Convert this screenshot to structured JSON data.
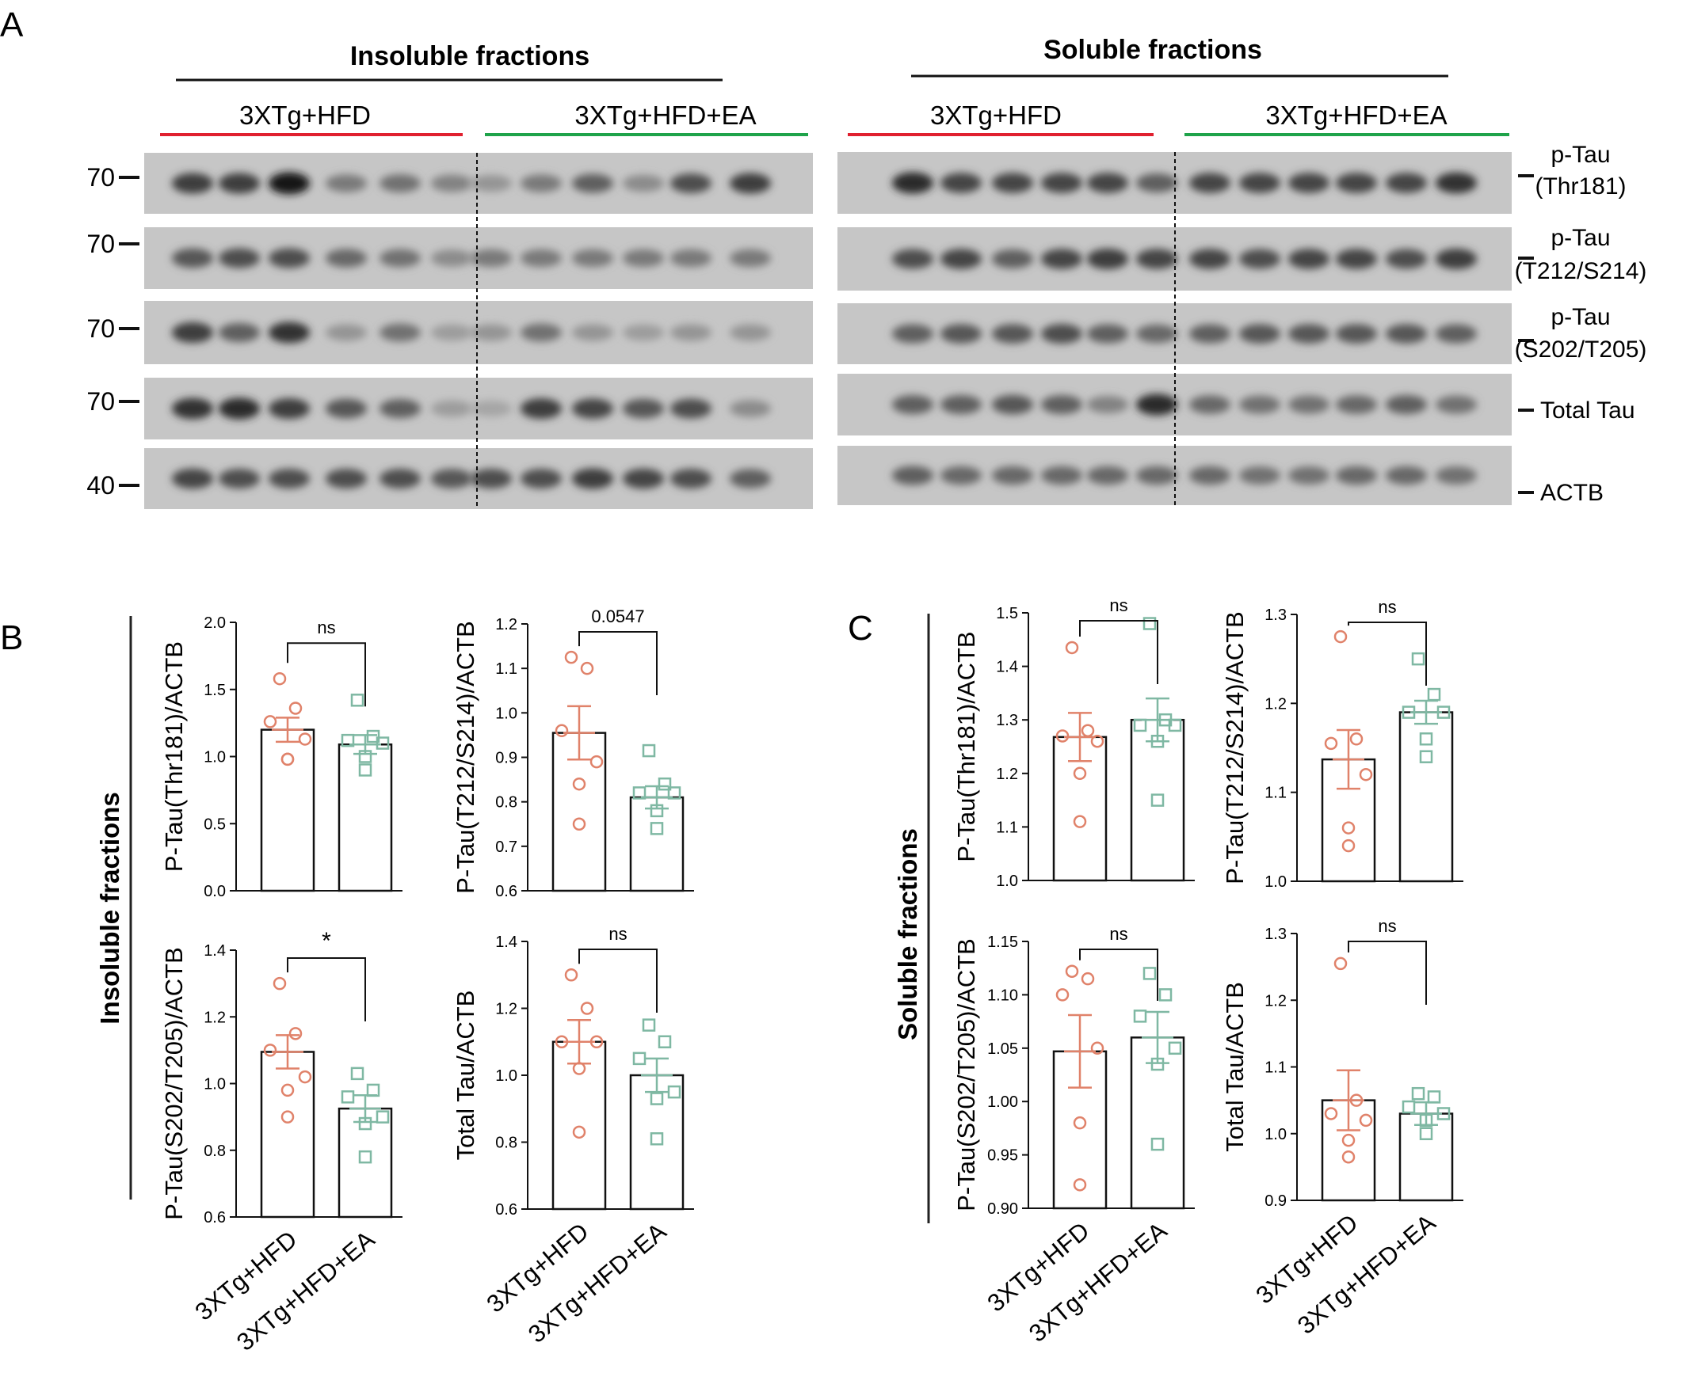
{
  "panels": {
    "A": "A",
    "B": "B",
    "C": "C"
  },
  "blots": {
    "insoluble_title": "Insoluble fractions",
    "soluble_title": "Soluble fractions",
    "group_hfd": "3XTg+HFD",
    "group_hfd_ea": "3XTg+HFD+EA",
    "mw_markers": [
      "70",
      "70",
      "70",
      "70",
      "40"
    ],
    "right_labels": [
      {
        "line1": "p-Tau",
        "line2": "(Thr181)"
      },
      {
        "line1": "p-Tau",
        "line2": "(T212/S214)"
      },
      {
        "line1": "p-Tau",
        "line2": "(S202/T205)"
      },
      {
        "line1": "Total Tau",
        "line2": ""
      },
      {
        "line1": "ACTB",
        "line2": ""
      }
    ]
  },
  "side_labels": {
    "insoluble": "Insoluble fractions",
    "soluble": "Soluble fractions"
  },
  "colors": {
    "hfd": "#e0826a",
    "hfd_ea": "#7fb8a3",
    "red_line": "#e0202f",
    "green_line": "#1fa34a"
  },
  "chart_data": [
    {
      "type": "bar",
      "id": "ins_thr181",
      "ylabel": "P-Tau(Thr181)/ACTB",
      "categories": [
        "3XTg+HFD",
        "3XTg+HFD+EA"
      ],
      "ylim": [
        0,
        2.0
      ],
      "yticks": [
        "0.0",
        "0.5",
        "1.0",
        "1.5",
        "2.0"
      ],
      "means": [
        1.2,
        1.09
      ],
      "sems": [
        0.09,
        0.07
      ],
      "points": [
        [
          1.58,
          1.36,
          1.26,
          1.13,
          0.98,
          0.98
        ],
        [
          1.42,
          1.15,
          1.12,
          1.1,
          1.0,
          0.9
        ]
      ],
      "annotation": "ns"
    },
    {
      "type": "bar",
      "id": "ins_t212",
      "ylabel": "P-Tau(T212/S214)/ACTB",
      "categories": [
        "3XTg+HFD",
        "3XTg+HFD+EA"
      ],
      "ylim": [
        0.6,
        1.2
      ],
      "yticks": [
        "0.6",
        "0.7",
        "0.8",
        "0.9",
        "1.0",
        "1.1",
        "1.2"
      ],
      "means": [
        0.955,
        0.81
      ],
      "sems": [
        0.06,
        0.025
      ],
      "points": [
        [
          1.125,
          1.1,
          0.96,
          0.89,
          0.84,
          0.75
        ],
        [
          0.915,
          0.84,
          0.82,
          0.82,
          0.78,
          0.74
        ]
      ],
      "annotation": "0.0547"
    },
    {
      "type": "bar",
      "id": "ins_s202",
      "ylabel": "P-Tau(S202/T205)/ACTB",
      "categories": [
        "3XTg+HFD",
        "3XTg+HFD+EA"
      ],
      "ylim": [
        0.6,
        1.4
      ],
      "yticks": [
        "0.6",
        "0.8",
        "1.0",
        "1.2",
        "1.4"
      ],
      "means": [
        1.095,
        0.925
      ],
      "sems": [
        0.05,
        0.04
      ],
      "points": [
        [
          1.3,
          1.15,
          1.1,
          1.02,
          0.98,
          0.9
        ],
        [
          1.03,
          0.98,
          0.96,
          0.9,
          0.88,
          0.78
        ]
      ],
      "annotation": "*"
    },
    {
      "type": "bar",
      "id": "ins_total",
      "ylabel": "Total Tau/ACTB",
      "categories": [
        "3XTg+HFD",
        "3XTg+HFD+EA"
      ],
      "ylim": [
        0.6,
        1.4
      ],
      "yticks": [
        "0.6",
        "0.8",
        "1.0",
        "1.2",
        "1.4"
      ],
      "means": [
        1.1,
        1.0
      ],
      "sems": [
        0.065,
        0.05
      ],
      "points": [
        [
          1.3,
          1.2,
          1.1,
          1.1,
          1.02,
          0.83
        ],
        [
          1.15,
          1.1,
          1.05,
          0.95,
          0.93,
          0.81
        ]
      ],
      "annotation": "ns"
    },
    {
      "type": "bar",
      "id": "sol_thr181",
      "ylabel": "P-Tau(Thr181)/ACTB",
      "categories": [
        "3XTg+HFD",
        "3XTg+HFD+EA"
      ],
      "ylim": [
        1.0,
        1.5
      ],
      "yticks": [
        "1.0",
        "1.1",
        "1.2",
        "1.3",
        "1.4",
        "1.5"
      ],
      "means": [
        1.268,
        1.3
      ],
      "sems": [
        0.045,
        0.04
      ],
      "points": [
        [
          1.435,
          1.28,
          1.27,
          1.26,
          1.2,
          1.11
        ],
        [
          1.48,
          1.3,
          1.29,
          1.29,
          1.26,
          1.15
        ]
      ],
      "annotation": "ns"
    },
    {
      "type": "bar",
      "id": "sol_t212",
      "ylabel": "P-Tau(T212/S214)/ACTB",
      "categories": [
        "3XTg+HFD",
        "3XTg+HFD+EA"
      ],
      "ylim": [
        1.0,
        1.3
      ],
      "yticks": [
        "1.0",
        "1.1",
        "1.2",
        "1.3"
      ],
      "means": [
        1.137,
        1.19
      ],
      "sems": [
        0.033,
        0.013
      ],
      "points": [
        [
          1.275,
          1.16,
          1.155,
          1.12,
          1.06,
          1.04
        ],
        [
          1.25,
          1.21,
          1.19,
          1.19,
          1.16,
          1.14
        ]
      ],
      "annotation": "ns"
    },
    {
      "type": "bar",
      "id": "sol_s202",
      "ylabel": "P-Tau(S202/T205)/ACTB",
      "categories": [
        "3XTg+HFD",
        "3XTg+HFD+EA"
      ],
      "ylim": [
        0.9,
        1.15
      ],
      "yticks": [
        "0.90",
        "0.95",
        "1.00",
        "1.05",
        "1.10",
        "1.15"
      ],
      "means": [
        1.047,
        1.06
      ],
      "sems": [
        0.034,
        0.024
      ],
      "points": [
        [
          1.122,
          1.115,
          1.1,
          1.05,
          0.98,
          0.922
        ],
        [
          1.12,
          1.1,
          1.08,
          1.05,
          1.035,
          0.96
        ]
      ],
      "annotation": "ns"
    },
    {
      "type": "bar",
      "id": "sol_total",
      "ylabel": "Total Tau/ACTB",
      "categories": [
        "3XTg+HFD",
        "3XTg+HFD+EA"
      ],
      "ylim": [
        0.9,
        1.3
      ],
      "yticks": [
        "0.9",
        "1.0",
        "1.1",
        "1.2",
        "1.3"
      ],
      "means": [
        1.05,
        1.03
      ],
      "sems": [
        0.045,
        0.017
      ],
      "points": [
        [
          1.255,
          1.05,
          1.03,
          1.02,
          0.99,
          0.965
        ],
        [
          1.06,
          1.055,
          1.04,
          1.03,
          1.02,
          1.0
        ]
      ],
      "annotation": "ns"
    }
  ]
}
